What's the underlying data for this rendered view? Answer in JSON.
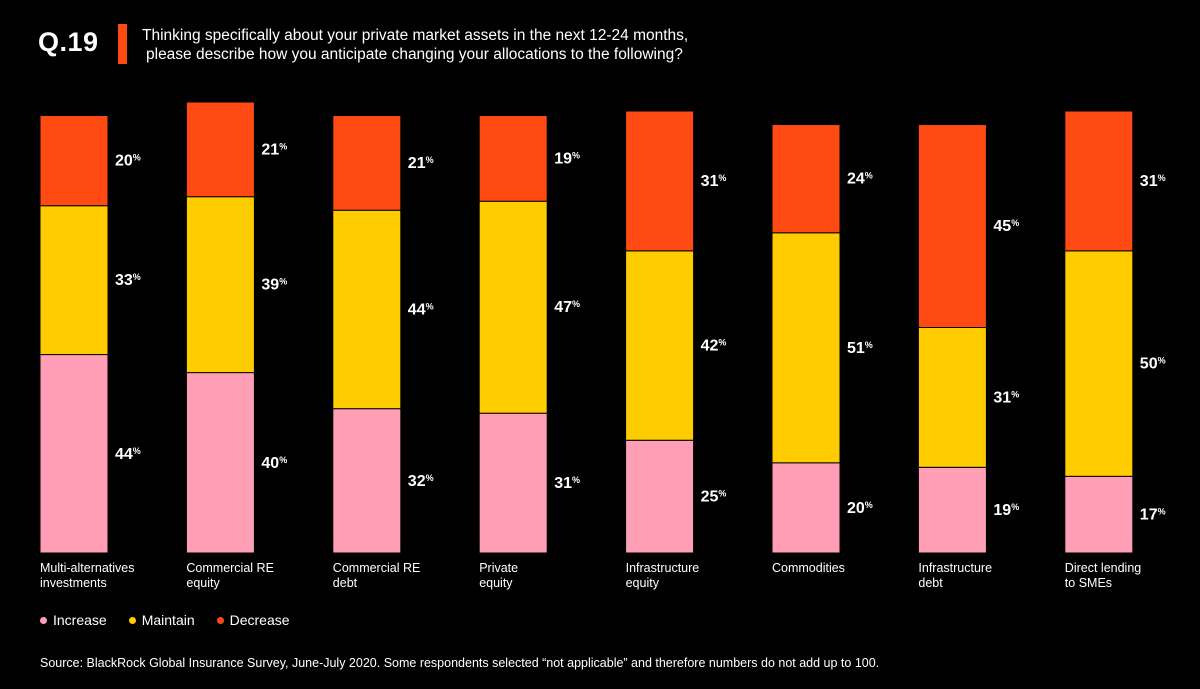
{
  "header": {
    "question_number": "Q.19",
    "question_line1": "Thinking specifically about your private market assets in the next 12-24 months,",
    "question_line2": "please describe how you anticipate changing your allocations to the following?"
  },
  "colors": {
    "increase": "#ff9eb5",
    "maintain": "#ffcc00",
    "decrease": "#ff4a14",
    "accent": "#ff4a14",
    "background": "#000000",
    "text": "#ffffff"
  },
  "legend": [
    {
      "label": "Increase",
      "series": "increase"
    },
    {
      "label": "Maintain",
      "series": "maintain"
    },
    {
      "label": "Decrease",
      "series": "decrease"
    }
  ],
  "chart_data": {
    "type": "bar",
    "stacked": true,
    "value_suffix": "%",
    "categories": [
      [
        "Multi-alternatives",
        "investments"
      ],
      [
        "Commercial RE",
        "equity"
      ],
      [
        "Commercial RE",
        "debt"
      ],
      [
        "Private",
        "equity"
      ],
      [
        "Infrastructure",
        "equity"
      ],
      [
        "Commodities"
      ],
      [
        "Infrastructure",
        "debt"
      ],
      [
        "Direct lending",
        "to SMEs"
      ]
    ],
    "series": [
      {
        "name": "Increase",
        "key": "increase",
        "values": [
          44,
          40,
          32,
          31,
          25,
          20,
          19,
          17
        ]
      },
      {
        "name": "Maintain",
        "key": "maintain",
        "values": [
          33,
          39,
          44,
          47,
          42,
          51,
          31,
          50
        ]
      },
      {
        "name": "Decrease",
        "key": "decrease",
        "values": [
          20,
          21,
          21,
          19,
          31,
          24,
          45,
          31
        ]
      }
    ],
    "legend_position": "bottom-left",
    "grid": false
  },
  "footer": {
    "source": "Source: BlackRock Global Insurance Survey, June-July 2020. Some respondents selected “not applicable” and therefore numbers do not add up to 100."
  }
}
